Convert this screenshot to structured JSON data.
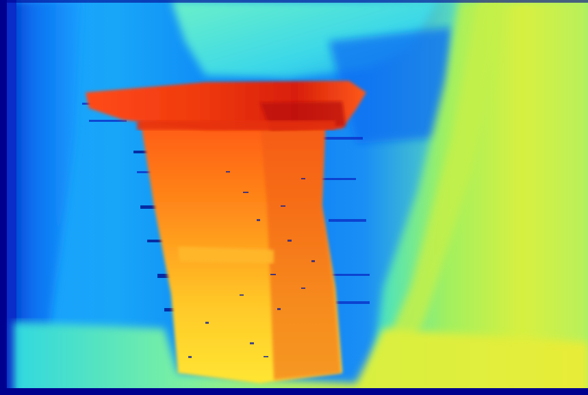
{
  "image": {
    "kind": "disparity-depth-map",
    "colormap": "jet",
    "palette": {
      "deep_blue": "#00008f",
      "blue": "#0050ff",
      "sky": "#1e9bff",
      "cyan": "#1ee6e6",
      "teal_green": "#5ef0a0",
      "green_yellow": "#b4f05a",
      "yellow": "#ffe632",
      "orange": "#ff8c19",
      "red_orange": "#ff4614",
      "dark_red": "#be0a0a"
    },
    "regions": [
      "left-wall",
      "far-background",
      "ceiling",
      "bench-top",
      "bench-legs",
      "right-wall",
      "floor"
    ]
  }
}
